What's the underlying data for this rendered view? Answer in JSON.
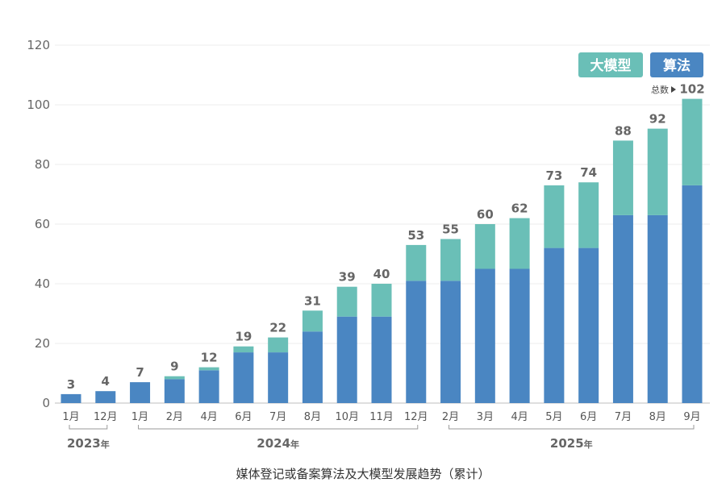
{
  "chart_data": {
    "type": "bar",
    "stacked": true,
    "caption": "媒体登记或备案算法及大模型发展趋势（累计）",
    "categories": [
      "1月",
      "12月",
      "1月",
      "2月",
      "4月",
      "6月",
      "7月",
      "8月",
      "10月",
      "11月",
      "12月",
      "2月",
      "3月",
      "4月",
      "5月",
      "6月",
      "7月",
      "8月",
      "9月"
    ],
    "year_groups": [
      {
        "year": "2023",
        "suffix": "年",
        "start": 0,
        "end": 1
      },
      {
        "year": "2024",
        "suffix": "年",
        "start": 2,
        "end": 10
      },
      {
        "year": "2025",
        "suffix": "年",
        "start": 11,
        "end": 18
      }
    ],
    "series": [
      {
        "name": "算法",
        "color": "#4a86c2",
        "values": [
          3,
          4,
          7,
          8,
          11,
          17,
          17,
          24,
          29,
          29,
          41,
          41,
          45,
          45,
          52,
          52,
          63,
          63,
          73
        ]
      },
      {
        "name": "大模型",
        "color": "#6abfb7",
        "values": [
          0,
          0,
          0,
          1,
          1,
          2,
          5,
          7,
          10,
          11,
          12,
          14,
          15,
          17,
          21,
          22,
          25,
          29,
          29
        ]
      }
    ],
    "totals": [
      3,
      4,
      7,
      9,
      12,
      19,
      22,
      31,
      39,
      40,
      53,
      55,
      60,
      62,
      73,
      74,
      88,
      92,
      102
    ],
    "total_label": "总数",
    "ylim": [
      0,
      120
    ],
    "yticks": [
      0,
      20,
      40,
      60,
      80,
      100,
      120
    ],
    "grid": true,
    "legend_position": "top-right"
  }
}
